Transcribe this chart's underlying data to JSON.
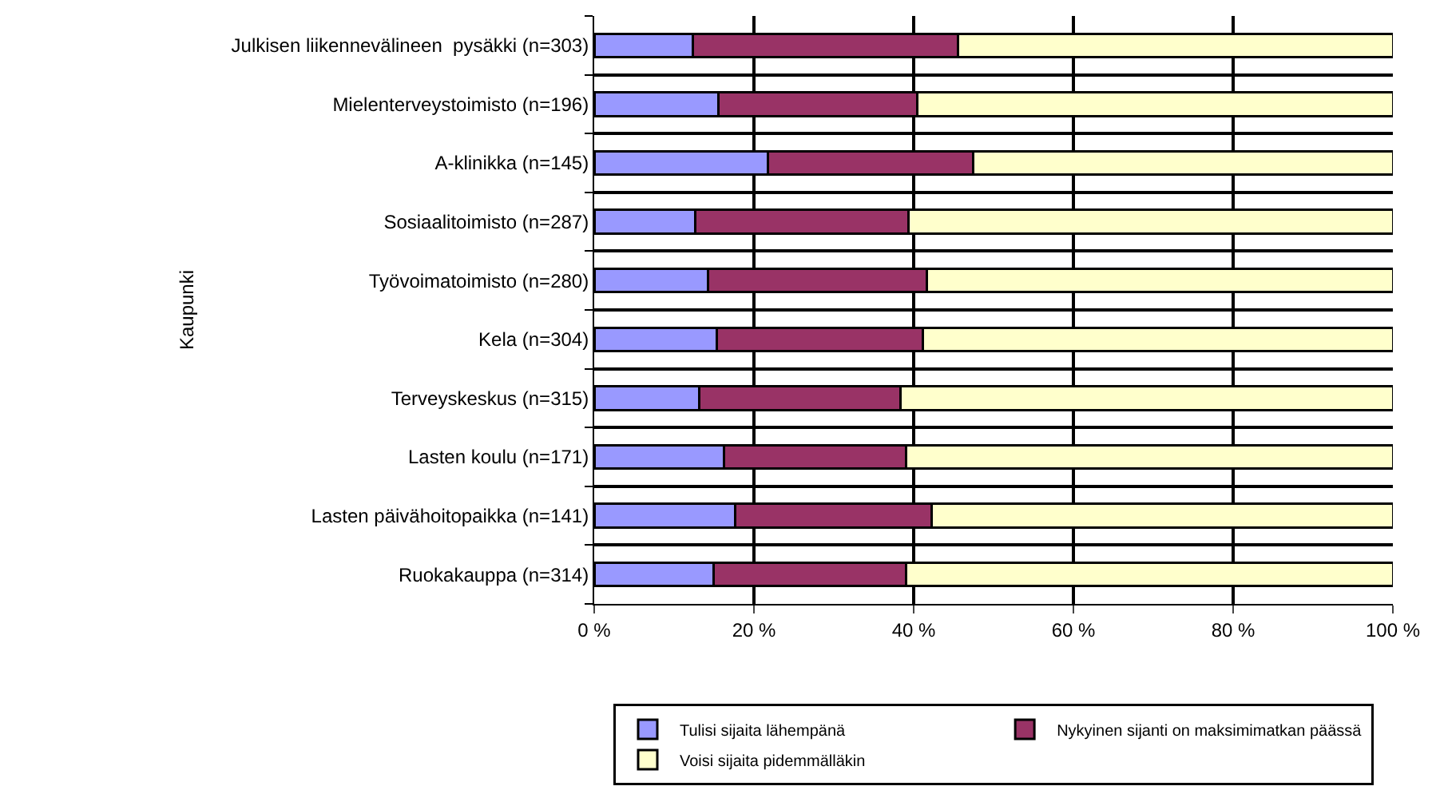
{
  "chart_data": {
    "type": "bar",
    "orientation": "horizontal",
    "stacked": true,
    "ylabel": "Kaupunki",
    "categories": [
      "Julkisen liikennevälineen  pysäkki (n=303)",
      "Mielenterveystoimisto (n=196)",
      "A-klinikka (n=145)",
      "Sosiaalitoimisto (n=287)",
      "Työvoimatoimisto (n=280)",
      "Kela (n=304)",
      "Terveyskeskus (n=315)",
      "Lasten koulu (n=171)",
      "Lasten päivähoitopaikka (n=141)",
      "Ruokakauppa (n=314)"
    ],
    "series": [
      {
        "name": "Tulisi sijaita lähempänä",
        "color": "#9999ff",
        "values": [
          12.3,
          15.5,
          21.7,
          12.6,
          14.2,
          15.3,
          13.1,
          16.2,
          17.6,
          14.9
        ]
      },
      {
        "name": "Nykyinen sijanti on maksimimatkan päässä",
        "color": "#993366",
        "values": [
          33.2,
          24.9,
          25.7,
          26.7,
          27.4,
          25.8,
          25.2,
          22.8,
          24.6,
          24.1
        ]
      },
      {
        "name": "Voisi sijaita pidemmälläkin",
        "color": "#ffffcc",
        "values": [
          54.5,
          59.6,
          52.6,
          60.7,
          58.4,
          58.9,
          61.7,
          61.0,
          57.8,
          61.0
        ]
      }
    ],
    "xlim": [
      0,
      100
    ],
    "xticks": [
      {
        "value": 0,
        "label": "0 %"
      },
      {
        "value": 20,
        "label": "20 %"
      },
      {
        "value": 40,
        "label": "40 %"
      },
      {
        "value": 60,
        "label": "60 %"
      },
      {
        "value": 80,
        "label": "80 %"
      },
      {
        "value": 100,
        "label": "100 %"
      }
    ],
    "grid": true,
    "legend": "bottom"
  }
}
